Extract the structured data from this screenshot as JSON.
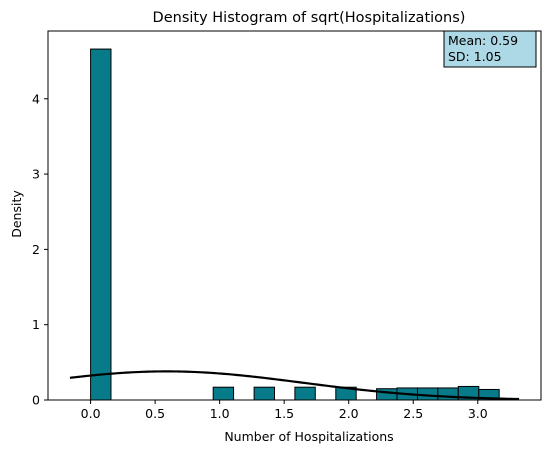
{
  "chart_data": {
    "type": "bar",
    "title": "Density Histogram of sqrt(Hospitalizations)",
    "xlabel": "Number of Hospitalizations",
    "ylabel": "Density",
    "xlim": [
      -0.33,
      3.49
    ],
    "ylim": [
      0,
      4.9
    ],
    "xticks": [
      "0.0",
      "0.5",
      "1.0",
      "1.5",
      "2.0",
      "2.5",
      "3.0"
    ],
    "xtick_values": [
      0,
      0.5,
      1.0,
      1.5,
      2.0,
      2.5,
      3.0
    ],
    "yticks": [
      "0",
      "1",
      "2",
      "3",
      "4"
    ],
    "ytick_values": [
      0,
      1,
      2,
      3,
      4
    ],
    "grid": false,
    "bar_color": "#087b8a",
    "bar_edge_color": "#000000",
    "curve_color": "#000000",
    "bins": [
      {
        "x0": 0.0,
        "x1": 0.158,
        "density": 4.66
      },
      {
        "x0": 0.95,
        "x1": 1.108,
        "density": 0.17
      },
      {
        "x0": 1.267,
        "x1": 1.425,
        "density": 0.17
      },
      {
        "x0": 1.583,
        "x1": 1.741,
        "density": 0.17
      },
      {
        "x0": 1.9,
        "x1": 2.058,
        "density": 0.17
      },
      {
        "x0": 2.216,
        "x1": 2.374,
        "density": 0.15
      },
      {
        "x0": 2.374,
        "x1": 2.533,
        "density": 0.16
      },
      {
        "x0": 2.533,
        "x1": 2.691,
        "density": 0.16
      },
      {
        "x0": 2.691,
        "x1": 2.849,
        "density": 0.16
      },
      {
        "x0": 2.849,
        "x1": 3.008,
        "density": 0.18
      },
      {
        "x0": 3.008,
        "x1": 3.166,
        "density": 0.14
      }
    ],
    "normal_curve": {
      "mean": 0.59,
      "sd": 1.05,
      "x_range": [
        -0.16,
        3.32
      ]
    },
    "annotation": {
      "lines": [
        "Mean: 0.59",
        "SD: 1.05"
      ],
      "background": "#add8e6",
      "placement": "top-right"
    }
  }
}
